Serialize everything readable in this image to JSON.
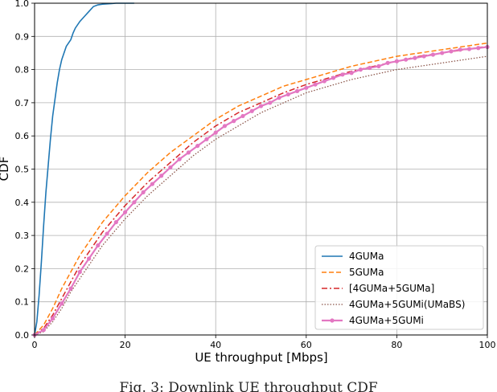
{
  "caption": "Fig. 3: Downlink UE throughput CDF",
  "chart_data": {
    "type": "line",
    "xlabel": "UE throughput [Mbps]",
    "ylabel": "CDF",
    "xlim": [
      0,
      100
    ],
    "ylim": [
      0,
      1.0
    ],
    "x_ticks": [
      0,
      20,
      40,
      60,
      80,
      100
    ],
    "y_ticks": [
      0.0,
      0.1,
      0.2,
      0.3,
      0.4,
      0.5,
      0.6,
      0.7,
      0.8,
      0.9,
      1.0
    ],
    "grid": true,
    "legend_position": "lower right",
    "series": [
      {
        "name": "4GUMa",
        "color": "#1f77b4",
        "style": "solid",
        "x": [
          0,
          0.5,
          1,
          1.5,
          2,
          2.5,
          3,
          3.5,
          4,
          4.5,
          5,
          5.5,
          6,
          6.5,
          7,
          7.5,
          8,
          8.5,
          9,
          10,
          11,
          12,
          13,
          14,
          15,
          16,
          17,
          18,
          20,
          22
        ],
        "y": [
          0,
          0.04,
          0.12,
          0.22,
          0.33,
          0.43,
          0.51,
          0.59,
          0.66,
          0.71,
          0.76,
          0.8,
          0.83,
          0.85,
          0.87,
          0.88,
          0.89,
          0.91,
          0.925,
          0.945,
          0.96,
          0.975,
          0.99,
          0.995,
          0.997,
          0.998,
          0.999,
          1.0,
          1.0,
          1.0
        ]
      },
      {
        "name": "5GUMa",
        "color": "#ff7f0e",
        "style": "dashed",
        "x": [
          0,
          2,
          4,
          6,
          8,
          10,
          15,
          20,
          25,
          30,
          35,
          40,
          45,
          50,
          55,
          60,
          65,
          70,
          75,
          80,
          85,
          90,
          95,
          100
        ],
        "y": [
          0,
          0.03,
          0.08,
          0.14,
          0.19,
          0.24,
          0.34,
          0.42,
          0.49,
          0.55,
          0.6,
          0.65,
          0.69,
          0.72,
          0.75,
          0.77,
          0.79,
          0.81,
          0.825,
          0.84,
          0.85,
          0.86,
          0.87,
          0.88
        ]
      },
      {
        "name": "[4GUMa+5GUMa]",
        "color": "#d62728",
        "style": "dashdot",
        "x": [
          0,
          2,
          4,
          6,
          8,
          10,
          15,
          20,
          25,
          30,
          35,
          40,
          45,
          50,
          55,
          60,
          65,
          70,
          75,
          80,
          85,
          90,
          95,
          100
        ],
        "y": [
          0,
          0.02,
          0.06,
          0.11,
          0.16,
          0.21,
          0.31,
          0.39,
          0.46,
          0.52,
          0.58,
          0.63,
          0.67,
          0.7,
          0.73,
          0.755,
          0.775,
          0.795,
          0.81,
          0.825,
          0.84,
          0.85,
          0.86,
          0.87
        ]
      },
      {
        "name": "4GUMa+5GUMi(UMaBS)",
        "color": "#8c564b",
        "style": "dotted",
        "x": [
          0,
          2,
          4,
          6,
          8,
          10,
          15,
          20,
          25,
          30,
          35,
          40,
          45,
          50,
          55,
          60,
          65,
          70,
          75,
          80,
          85,
          90,
          95,
          100
        ],
        "y": [
          0,
          0.01,
          0.04,
          0.08,
          0.13,
          0.17,
          0.27,
          0.35,
          0.42,
          0.48,
          0.54,
          0.59,
          0.63,
          0.67,
          0.7,
          0.73,
          0.75,
          0.77,
          0.785,
          0.8,
          0.81,
          0.82,
          0.83,
          0.84
        ]
      },
      {
        "name": "4GUMa+5GUMi",
        "color": "#e377c2",
        "style": "solid-marker",
        "x": [
          0,
          2,
          4,
          6,
          8,
          10,
          12,
          14,
          16,
          18,
          20,
          22,
          24,
          26,
          28,
          30,
          32,
          34,
          36,
          38,
          40,
          42,
          44,
          46,
          48,
          50,
          52,
          54,
          56,
          58,
          60,
          62,
          64,
          66,
          68,
          70,
          72,
          74,
          76,
          78,
          80,
          82,
          84,
          86,
          88,
          90,
          92,
          94,
          96,
          98,
          100
        ],
        "y": [
          0,
          0.015,
          0.05,
          0.095,
          0.14,
          0.19,
          0.23,
          0.27,
          0.305,
          0.34,
          0.37,
          0.4,
          0.43,
          0.455,
          0.48,
          0.505,
          0.53,
          0.55,
          0.57,
          0.59,
          0.61,
          0.63,
          0.645,
          0.66,
          0.675,
          0.69,
          0.7,
          0.715,
          0.725,
          0.735,
          0.745,
          0.755,
          0.765,
          0.775,
          0.785,
          0.79,
          0.8,
          0.805,
          0.81,
          0.82,
          0.825,
          0.83,
          0.835,
          0.84,
          0.845,
          0.85,
          0.855,
          0.86,
          0.862,
          0.865,
          0.868
        ]
      }
    ]
  }
}
